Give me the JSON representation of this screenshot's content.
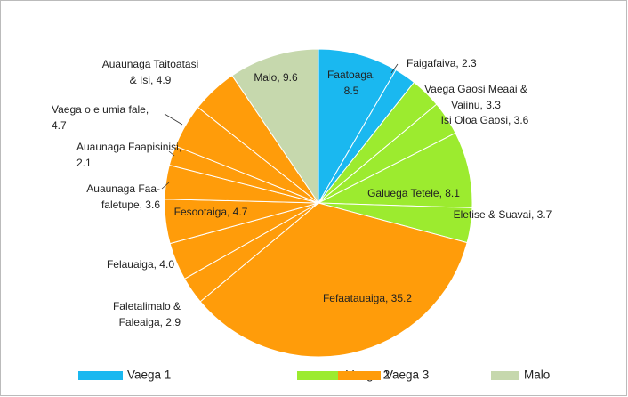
{
  "chart_data": {
    "type": "pie",
    "categories": [
      "Faatoaga",
      "Faigafaiva",
      "Vaega Gaosi Meaai & Vaiinu",
      "Isi Oloa Gaosi",
      "Galuega Tetele",
      "Eletise & Suavai",
      "Fefaatauaiga",
      "Faletalimalo & Faleaiga",
      "Felauaiga",
      "Fesootaiga",
      "Auaunaga Faa-faletupe",
      "Auaunaga Faapisinisi",
      "Vaega o e umia fale",
      "Auaunaga Taitoatasi & Isi",
      "Malo"
    ],
    "values": [
      8.5,
      2.3,
      3.3,
      3.6,
      8.1,
      3.7,
      35.2,
      2.9,
      4.0,
      4.7,
      3.6,
      2.1,
      4.7,
      4.9,
      9.6
    ],
    "value_labels": [
      [
        "Faatoaga,",
        "8.5"
      ],
      [
        "Faigafaiva, 2.3"
      ],
      [
        "Vaega Gaosi Meaai &",
        "Vaiinu, 3.3"
      ],
      [
        "Isi Oloa Gaosi, 3.6"
      ],
      [
        "Galuega Tetele, 8.1"
      ],
      [
        "Eletise & Suavai, 3.7"
      ],
      [
        "Fefaatauaiga, 35.2"
      ],
      [
        "Faletalimalo &",
        "Faleaiga, 2.9"
      ],
      [
        "Felauaiga, 4.0"
      ],
      [
        "Fesootaiga, 4.7"
      ],
      [
        "Auaunaga Faa-",
        "faletupe, 3.6"
      ],
      [
        "Auaunaga Faapisinisi,",
        "2.1"
      ],
      [
        "Vaega o e umia fale,",
        "4.7"
      ],
      [
        "Auaunaga Taitoatasi",
        "& Isi, 4.9"
      ],
      [
        "Malo, 9.6"
      ]
    ],
    "groups": [
      0,
      0,
      1,
      1,
      1,
      1,
      2,
      2,
      2,
      2,
      2,
      2,
      2,
      2,
      3
    ],
    "legend": [
      {
        "name": "Vaega 1",
        "color": "#1ab8f0"
      },
      {
        "name": "Vaega 2",
        "color": "#9ceb2f"
      },
      {
        "name": "Vaega 3",
        "color": "#ff9c0a"
      },
      {
        "name": "Malo",
        "color": "#c6d8ad"
      }
    ],
    "legend_position": "bottom"
  }
}
